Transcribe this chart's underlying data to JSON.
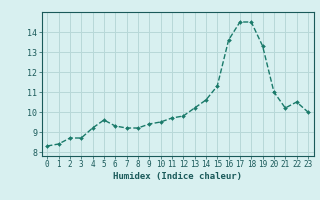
{
  "x": [
    0,
    1,
    2,
    3,
    4,
    5,
    6,
    7,
    8,
    9,
    10,
    11,
    12,
    13,
    14,
    15,
    16,
    17,
    18,
    19,
    20,
    21,
    22,
    23
  ],
  "y": [
    8.3,
    8.4,
    8.7,
    8.7,
    9.2,
    9.6,
    9.3,
    9.2,
    9.2,
    9.4,
    9.5,
    9.7,
    9.8,
    10.2,
    10.6,
    11.3,
    13.6,
    14.5,
    14.5,
    13.3,
    11.0,
    10.2,
    10.5,
    10.0
  ],
  "line_color": "#1a7a6a",
  "marker": "D",
  "marker_size": 2.0,
  "bg_color": "#d8f0f0",
  "grid_color": "#b8d8d8",
  "xlabel": "Humidex (Indice chaleur)",
  "ylim": [
    7.8,
    15.0
  ],
  "xlim": [
    -0.5,
    23.5
  ],
  "yticks": [
    8,
    9,
    10,
    11,
    12,
    13,
    14
  ],
  "xticks": [
    0,
    1,
    2,
    3,
    4,
    5,
    6,
    7,
    8,
    9,
    10,
    11,
    12,
    13,
    14,
    15,
    16,
    17,
    18,
    19,
    20,
    21,
    22,
    23
  ],
  "font_color": "#1a5a5a",
  "linewidth": 1.0,
  "tick_fontsize": 5.5,
  "xlabel_fontsize": 6.5
}
